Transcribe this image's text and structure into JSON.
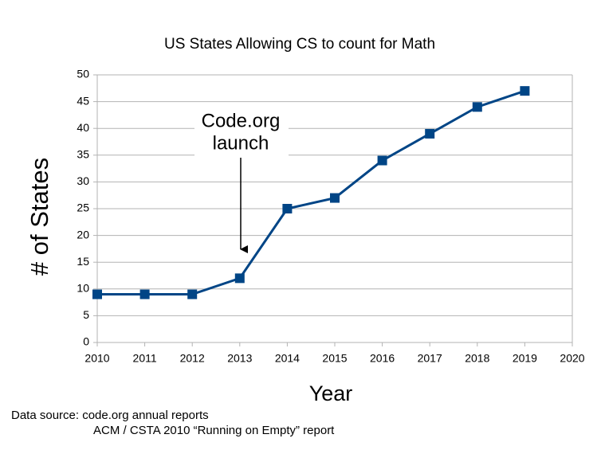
{
  "chart_data": {
    "type": "line",
    "title": "US States Allowing CS to count for Math",
    "x_label": "Year",
    "y_label": "# of States",
    "x": [
      2010,
      2011,
      2012,
      2013,
      2014,
      2015,
      2016,
      2017,
      2018,
      2019
    ],
    "series": [
      {
        "name": "States",
        "color": "#004586",
        "values": [
          9,
          9,
          9,
          12,
          25,
          27,
          34,
          39,
          44,
          47
        ]
      }
    ],
    "xlim": [
      2010,
      2020
    ],
    "xticks": [
      2010,
      2011,
      2012,
      2013,
      2014,
      2015,
      2016,
      2017,
      2018,
      2019,
      2020
    ],
    "ylim": [
      0,
      50
    ],
    "yticks": [
      0,
      5,
      10,
      15,
      20,
      25,
      30,
      35,
      40,
      45,
      50
    ],
    "grid": true,
    "grid_color": "#b3b3b3",
    "annotation": [
      "Code.org",
      "launch"
    ],
    "source": [
      "Data source: code.org annual reports",
      "ACM / CSTA 2010 “Running on Empty” report"
    ]
  }
}
